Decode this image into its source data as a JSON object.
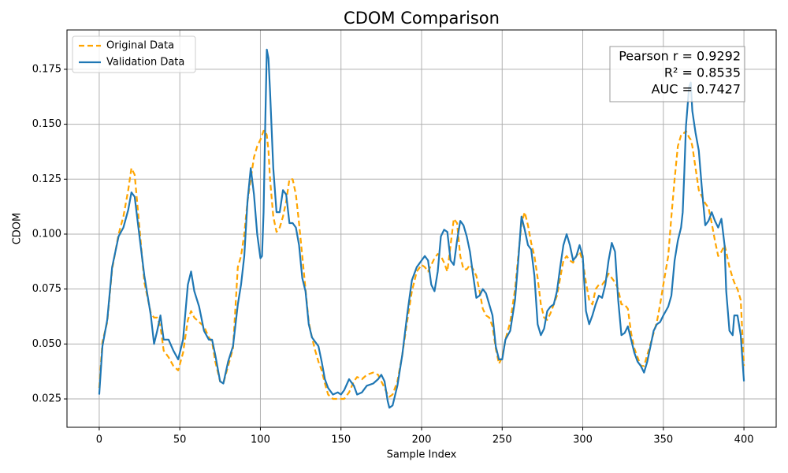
{
  "chart_data": {
    "type": "line",
    "title": "CDOM Comparison",
    "xlabel": "Sample Index",
    "ylabel": "CDOM",
    "x": [
      0,
      2,
      5,
      8,
      12,
      15,
      18,
      20,
      22,
      25,
      28,
      32,
      34,
      36,
      38,
      40,
      43,
      46,
      49,
      52,
      55,
      57,
      59,
      62,
      65,
      68,
      70,
      72,
      75,
      77,
      80,
      83,
      86,
      88,
      90,
      92,
      94,
      96,
      98,
      100,
      101,
      102,
      103,
      104,
      105,
      106,
      108,
      110,
      112,
      114,
      116,
      118,
      120,
      122,
      124,
      126,
      128,
      130,
      132,
      134,
      136,
      138,
      140,
      142,
      145,
      148,
      150,
      152,
      155,
      158,
      160,
      163,
      166,
      170,
      173,
      175,
      177,
      179,
      180,
      182,
      185,
      188,
      191,
      194,
      197,
      200,
      202,
      204,
      206,
      208,
      210,
      212,
      214,
      216,
      218,
      220,
      222,
      224,
      226,
      228,
      230,
      232,
      234,
      236,
      238,
      240,
      242,
      244,
      246,
      248,
      250,
      252,
      255,
      258,
      260,
      262,
      264,
      266,
      268,
      270,
      272,
      274,
      276,
      278,
      280,
      282,
      284,
      286,
      288,
      290,
      292,
      294,
      296,
      298,
      300,
      302,
      304,
      306,
      308,
      310,
      312,
      314,
      316,
      318,
      320,
      322,
      324,
      326,
      328,
      330,
      332,
      334,
      336,
      338,
      340,
      342,
      344,
      346,
      348,
      350,
      353,
      355,
      357,
      359,
      361,
      362,
      363,
      364,
      366,
      367,
      368,
      370,
      372,
      374,
      376,
      378,
      380,
      382,
      384,
      386,
      388,
      389,
      391,
      393,
      394,
      396,
      398,
      400
    ],
    "series": [
      {
        "name": "Original Data",
        "color": "#ffa500",
        "style": "dashed",
        "values": [
          0.03,
          0.051,
          0.06,
          0.084,
          0.1,
          0.108,
          0.12,
          0.13,
          0.127,
          0.103,
          0.078,
          0.064,
          0.062,
          0.062,
          0.058,
          0.047,
          0.044,
          0.04,
          0.038,
          0.046,
          0.061,
          0.065,
          0.062,
          0.06,
          0.058,
          0.053,
          0.051,
          0.042,
          0.033,
          0.032,
          0.04,
          0.048,
          0.085,
          0.09,
          0.1,
          0.115,
          0.125,
          0.135,
          0.14,
          0.143,
          0.145,
          0.147,
          0.147,
          0.145,
          0.138,
          0.125,
          0.108,
          0.101,
          0.103,
          0.108,
          0.115,
          0.125,
          0.125,
          0.118,
          0.105,
          0.09,
          0.075,
          0.06,
          0.053,
          0.047,
          0.042,
          0.038,
          0.032,
          0.027,
          0.025,
          0.025,
          0.025,
          0.025,
          0.028,
          0.033,
          0.035,
          0.034,
          0.036,
          0.037,
          0.036,
          0.033,
          0.03,
          0.027,
          0.026,
          0.027,
          0.033,
          0.045,
          0.06,
          0.074,
          0.083,
          0.086,
          0.085,
          0.083,
          0.086,
          0.089,
          0.091,
          0.09,
          0.087,
          0.083,
          0.095,
          0.107,
          0.105,
          0.09,
          0.084,
          0.084,
          0.086,
          0.084,
          0.081,
          0.074,
          0.066,
          0.063,
          0.062,
          0.058,
          0.048,
          0.041,
          0.044,
          0.052,
          0.06,
          0.075,
          0.09,
          0.105,
          0.11,
          0.104,
          0.096,
          0.09,
          0.08,
          0.068,
          0.062,
          0.061,
          0.064,
          0.068,
          0.072,
          0.08,
          0.088,
          0.09,
          0.088,
          0.087,
          0.09,
          0.092,
          0.088,
          0.078,
          0.07,
          0.068,
          0.075,
          0.077,
          0.077,
          0.079,
          0.082,
          0.08,
          0.078,
          0.075,
          0.068,
          0.068,
          0.066,
          0.055,
          0.048,
          0.044,
          0.04,
          0.04,
          0.045,
          0.05,
          0.055,
          0.06,
          0.068,
          0.077,
          0.09,
          0.108,
          0.125,
          0.14,
          0.145,
          0.146,
          0.146,
          0.147,
          0.144,
          0.143,
          0.14,
          0.13,
          0.12,
          0.117,
          0.114,
          0.112,
          0.105,
          0.097,
          0.09,
          0.092,
          0.095,
          0.092,
          0.085,
          0.08,
          0.078,
          0.075,
          0.07,
          0.04
        ]
      },
      {
        "name": "Validation Data",
        "color": "#1f77b4",
        "style": "solid",
        "values": [
          0.027,
          0.049,
          0.061,
          0.085,
          0.099,
          0.103,
          0.111,
          0.119,
          0.117,
          0.099,
          0.081,
          0.063,
          0.05,
          0.056,
          0.063,
          0.052,
          0.052,
          0.047,
          0.043,
          0.052,
          0.077,
          0.083,
          0.074,
          0.067,
          0.056,
          0.052,
          0.052,
          0.045,
          0.033,
          0.032,
          0.042,
          0.049,
          0.068,
          0.077,
          0.09,
          0.115,
          0.13,
          0.118,
          0.1,
          0.089,
          0.09,
          0.11,
          0.15,
          0.184,
          0.18,
          0.165,
          0.13,
          0.11,
          0.11,
          0.12,
          0.118,
          0.105,
          0.105,
          0.103,
          0.095,
          0.08,
          0.074,
          0.059,
          0.053,
          0.051,
          0.049,
          0.042,
          0.034,
          0.03,
          0.027,
          0.028,
          0.027,
          0.029,
          0.034,
          0.031,
          0.027,
          0.028,
          0.031,
          0.032,
          0.034,
          0.036,
          0.033,
          0.024,
          0.021,
          0.022,
          0.031,
          0.045,
          0.063,
          0.079,
          0.085,
          0.088,
          0.09,
          0.088,
          0.077,
          0.074,
          0.083,
          0.099,
          0.102,
          0.101,
          0.088,
          0.086,
          0.097,
          0.106,
          0.104,
          0.099,
          0.092,
          0.081,
          0.071,
          0.072,
          0.075,
          0.073,
          0.068,
          0.063,
          0.049,
          0.043,
          0.043,
          0.052,
          0.056,
          0.07,
          0.088,
          0.108,
          0.102,
          0.095,
          0.093,
          0.081,
          0.059,
          0.054,
          0.057,
          0.065,
          0.067,
          0.068,
          0.074,
          0.085,
          0.095,
          0.1,
          0.095,
          0.088,
          0.09,
          0.095,
          0.09,
          0.065,
          0.059,
          0.063,
          0.068,
          0.072,
          0.071,
          0.077,
          0.088,
          0.096,
          0.092,
          0.07,
          0.054,
          0.055,
          0.058,
          0.052,
          0.046,
          0.042,
          0.04,
          0.037,
          0.042,
          0.049,
          0.056,
          0.059,
          0.06,
          0.063,
          0.067,
          0.072,
          0.088,
          0.097,
          0.103,
          0.11,
          0.128,
          0.149,
          0.167,
          0.169,
          0.156,
          0.146,
          0.138,
          0.12,
          0.104,
          0.106,
          0.11,
          0.106,
          0.103,
          0.107,
          0.095,
          0.074,
          0.056,
          0.054,
          0.063,
          0.063,
          0.054,
          0.033
        ]
      }
    ],
    "xlim": [
      -20,
      420
    ],
    "xticks": [
      0,
      50,
      100,
      150,
      200,
      250,
      300,
      350,
      400
    ],
    "ylim": [
      0.0121,
      0.1929
    ],
    "yticks": [
      0.025,
      {
        "value": 0.05,
        "label": "0.050"
      },
      0.075,
      {
        "value": 0.1,
        "label": "0.100"
      },
      0.125,
      {
        "value": 0.15,
        "label": "0.150"
      },
      0.175
    ],
    "grid": true,
    "legend": "upper-left",
    "annotation": [
      "Pearson r = 0.9292",
      "R² = 0.8535",
      "AUC = 0.7427"
    ]
  }
}
